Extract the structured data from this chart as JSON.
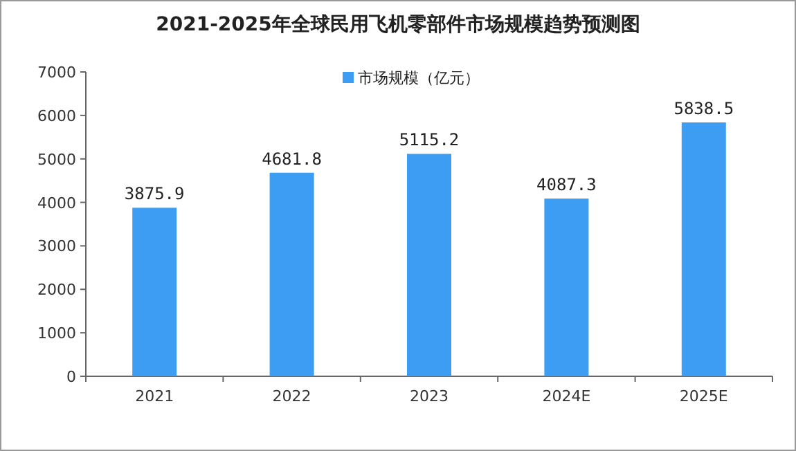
{
  "chart_data": {
    "type": "bar",
    "title": "2021-2025年全球民用飞机零部件市场规模趋势预测图",
    "categories": [
      "2021",
      "2022",
      "2023",
      "2024E",
      "2025E"
    ],
    "series": [
      {
        "name": "市场规模（亿元）",
        "color": "#3d9df3",
        "values": [
          3875.9,
          4681.8,
          5115.2,
          4087.3,
          5838.5
        ]
      }
    ],
    "ylim": [
      0,
      7000
    ],
    "yticks": [
      0,
      1000,
      2000,
      3000,
      4000,
      5000,
      6000,
      7000
    ],
    "data_labels": true,
    "legend": "top",
    "grid": false
  }
}
